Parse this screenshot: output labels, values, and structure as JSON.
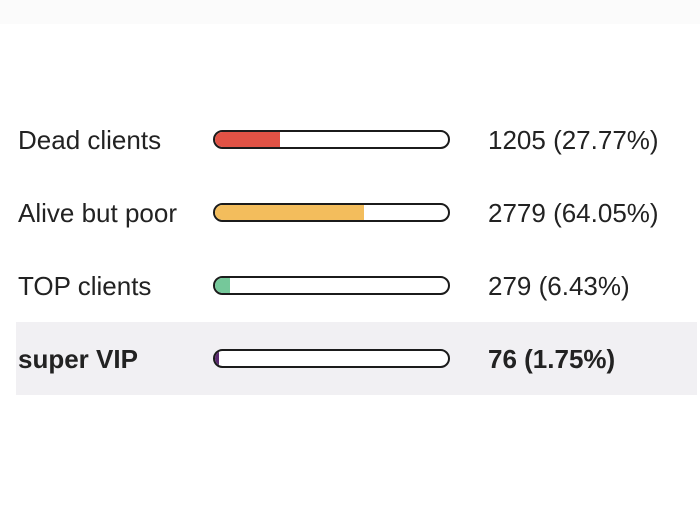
{
  "segments": [
    {
      "label": "Dead clients",
      "value": "1205 (27.77%)",
      "fill": 0.2777,
      "color": "#e05245",
      "highlighted": false
    },
    {
      "label": "Alive but poor",
      "value": "2779 (64.05%)",
      "fill": 0.6405,
      "color": "#f3bd5c",
      "highlighted": false
    },
    {
      "label": "TOP clients",
      "value": "279 (6.43%)",
      "fill": 0.0643,
      "color": "#75c89a",
      "highlighted": false
    },
    {
      "label": "super VIP",
      "value": "76 (1.75%)",
      "fill": 0.0175,
      "color": "#5a2a6e",
      "highlighted": true
    }
  ]
}
